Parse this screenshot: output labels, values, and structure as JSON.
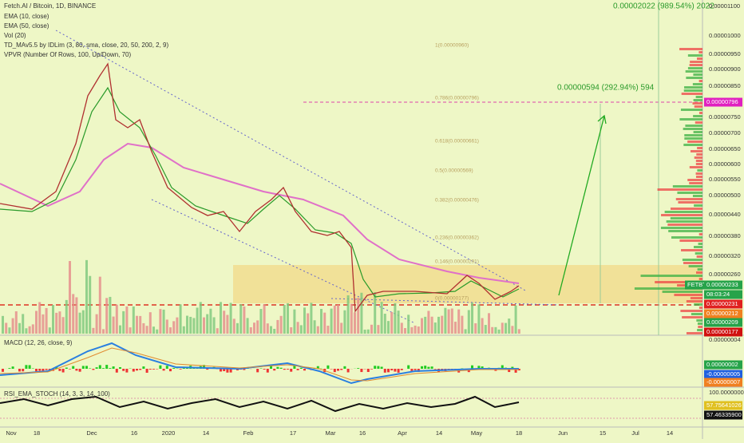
{
  "legend": [
    "Fetch.AI / Bitcoin, 1D, BINANCE",
    "EMA (10, close)",
    "EMA (50, close)",
    "Vol (20)",
    "TD_MAv5.5 by IDLim (3, 80, sma, close, 20, 50, 200, 2, 9)",
    "VPVR (Number Of Rows, 100, Up/Down, 70)"
  ],
  "top_measure": "0.00002022 (989.54%) 2022",
  "target_measure": "0.00000594 (292.94%) 594",
  "fib_levels": [
    "1(0.00000960)",
    "0.786(0.00000796)",
    "0.618(0.00000661)",
    "0.5(0.00000569)",
    "0.382(0.00000476)",
    "0.236(0.00000362)",
    "0.146(0.00000291)",
    "0(0.00000177)"
  ],
  "price_axis": [
    "0.00001100",
    "0.00001000",
    "0.00000950",
    "0.00000900",
    "0.00000850",
    "0.00000750",
    "0.00000700",
    "0.00000650",
    "0.00000600",
    "0.00000550",
    "0.00000500",
    "0.00000440",
    "0.00000380",
    "0.00000320",
    "0.00000260"
  ],
  "price_tags": {
    "target": "0.00000796",
    "symbol": "FETBTC",
    "last": "0.00000233",
    "countdown": "08:03:24",
    "red": "0.00000231",
    "orange": "0.00000212",
    "green": "0.00000209",
    "low": "0.00000177"
  },
  "macd": {
    "title": "MACD (12, 26, close, 9)",
    "axis": "0.00000004",
    "tags": [
      "0.00000002",
      "-0.00000005",
      "-0.00000007"
    ]
  },
  "rsi": {
    "title": "RSI_EMA_STOCH (14, 3, 3, 14, 100)",
    "axis": "100.0000000",
    "tags": [
      "57.75641026",
      "57.46335900"
    ]
  },
  "time_axis": [
    "Nov",
    "18",
    "Dec",
    "16",
    "2020",
    "14",
    "Feb",
    "17",
    "Mar",
    "16",
    "Apr",
    "14",
    "May",
    "18",
    "Jun",
    "15",
    "Jul",
    "14"
  ]
}
